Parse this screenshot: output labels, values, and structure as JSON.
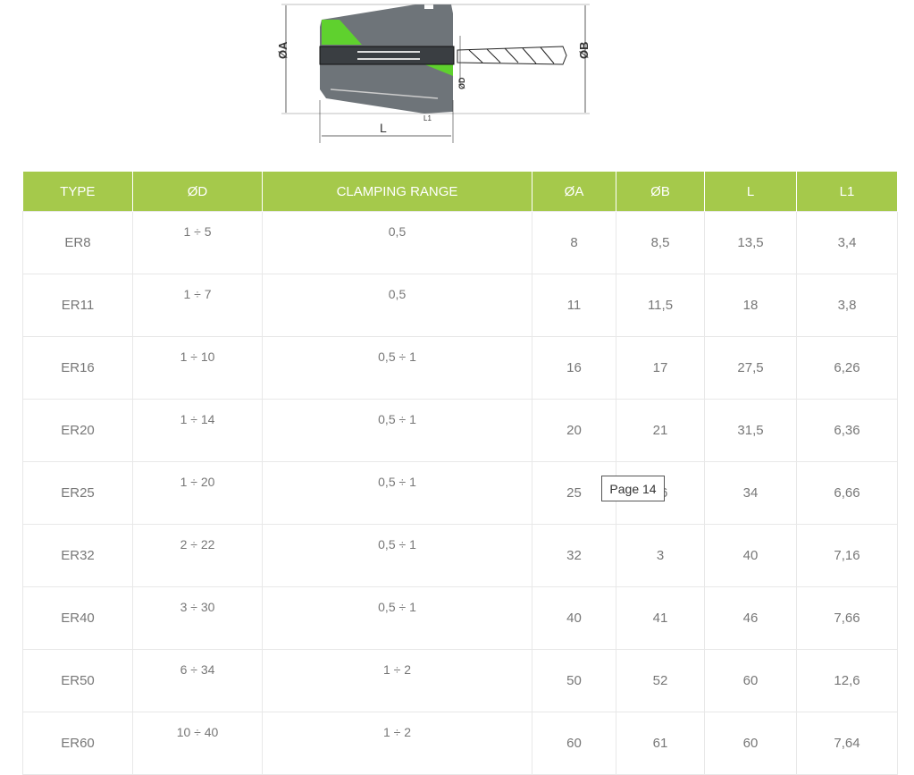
{
  "diagram": {
    "labels": {
      "a": "ØA",
      "b": "ØB",
      "d": "ØD",
      "l": "L",
      "l1": "L1"
    },
    "colors": {
      "body": "#6e7479",
      "accent": "#5fd12e"
    }
  },
  "table": {
    "headers": [
      "TYPE",
      "ØD",
      "CLAMPING RANGE",
      "ØA",
      "ØB",
      "L",
      "L1"
    ],
    "rows": [
      [
        "ER8",
        "1 ÷ 5",
        "0,5",
        "8",
        "8,5",
        "13,5",
        "3,4"
      ],
      [
        "ER11",
        "1 ÷ 7",
        "0,5",
        "11",
        "11,5",
        "18",
        "3,8"
      ],
      [
        "ER16",
        "1 ÷ 10",
        "0,5 ÷ 1",
        "16",
        "17",
        "27,5",
        "6,26"
      ],
      [
        "ER20",
        "1 ÷ 14",
        "0,5 ÷ 1",
        "20",
        "21",
        "31,5",
        "6,36"
      ],
      [
        "ER25",
        "1 ÷ 20",
        "0,5 ÷ 1",
        "25",
        "26",
        "34",
        "6,66"
      ],
      [
        "ER32",
        "2 ÷ 22",
        "0,5 ÷ 1",
        "32",
        "3",
        "40",
        "7,16"
      ],
      [
        "ER40",
        "3 ÷ 30",
        "0,5 ÷ 1",
        "40",
        "41",
        "46",
        "7,66"
      ],
      [
        "ER50",
        "6 ÷ 34",
        "1 ÷ 2",
        "50",
        "52",
        "60",
        "12,6"
      ],
      [
        "ER60",
        "10 ÷ 40",
        "1 ÷ 2",
        "60",
        "61",
        "60",
        "7,64"
      ]
    ],
    "header_color": "#a5c94b"
  },
  "tooltip": {
    "text": "Page 14"
  }
}
